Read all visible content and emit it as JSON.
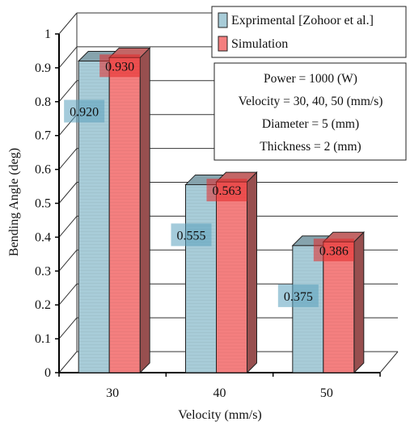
{
  "chart_data": {
    "type": "bar",
    "categories": [
      "30",
      "40",
      "50"
    ],
    "series": [
      {
        "name": "Exprimental [Zohoor et al.]",
        "values": [
          0.92,
          0.555,
          0.375
        ],
        "labels": [
          "0.920",
          "0.555",
          "0.375"
        ],
        "color": "#a8ccd8"
      },
      {
        "name": "Simulation",
        "values": [
          0.93,
          0.563,
          0.386
        ],
        "labels": [
          "0.930",
          "0.563",
          "0.386"
        ],
        "color": "#f47f7f"
      }
    ],
    "xlabel": "Velocity (mm/s)",
    "ylabel": "Bending Angle (deg)",
    "ylim": [
      0,
      1
    ],
    "yticks": [
      "0",
      "0.1",
      "0.2",
      "0.3",
      "0.4",
      "0.5",
      "0.6",
      "0.7",
      "0.8",
      "0.9",
      "1"
    ],
    "grid": true,
    "style": "3d-clustered-bar",
    "legend_position": "top-right",
    "annotation": [
      "Power = 1000 (W)",
      "Velocity = 30, 40, 50 (mm/s)",
      "Diameter = 5 (mm)",
      "Thickness = 2 (mm)"
    ]
  }
}
